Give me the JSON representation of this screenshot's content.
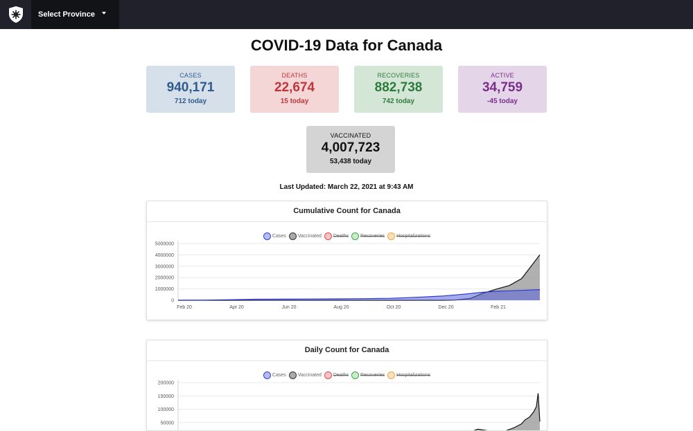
{
  "navbar": {
    "logo_icon": "shield-maple-leaf-icon",
    "dropdown_label": "Select Province"
  },
  "title": "COVID-19 Data for Canada",
  "stats": {
    "cases": {
      "label": "CASES",
      "value": "940,171",
      "today": "712 today"
    },
    "deaths": {
      "label": "DEATHS",
      "value": "22,674",
      "today": "15 today"
    },
    "recoveries": {
      "label": "RECOVERIES",
      "value": "882,738",
      "today": "742 today"
    },
    "active": {
      "label": "ACTIVE",
      "value": "34,759",
      "today": "-45 today"
    },
    "vaccinated": {
      "label": "VACCINATED",
      "value": "4,007,723",
      "today": "53,438 today"
    }
  },
  "last_updated": "Last Updated: March 22, 2021 at 9:43 AM",
  "legend": [
    {
      "label": "Cases",
      "color": "#3040d8",
      "fill": "#b5bcf2",
      "enabled": true
    },
    {
      "label": "Vaccinated",
      "color": "#333333",
      "fill": "#aaaaaa",
      "enabled": true
    },
    {
      "label": "Deaths",
      "color": "#e04a4a",
      "fill": "#f6c4c4",
      "enabled": false
    },
    {
      "label": "Recoveries",
      "color": "#3aa64a",
      "fill": "#c8ecc8",
      "enabled": false
    },
    {
      "label": "Hospitalizations",
      "color": "#f0a640",
      "fill": "#fbe0bd",
      "enabled": false
    }
  ],
  "chart_data": [
    {
      "type": "area",
      "title": "Cumulative Count for Canada",
      "x_ticks": [
        "Feb 20",
        "Apr 20",
        "Jun 20",
        "Aug 20",
        "Oct 20",
        "Dec 20",
        "Feb 21"
      ],
      "y_ticks": [
        "5000000",
        "4000000",
        "3000000",
        "2000000",
        "1000000",
        "0"
      ],
      "ylim": [
        0,
        5000000
      ],
      "x": [
        "2020-02-01",
        "2020-03-01",
        "2020-04-01",
        "2020-05-01",
        "2020-06-01",
        "2020-07-01",
        "2020-08-01",
        "2020-09-01",
        "2020-10-01",
        "2020-11-01",
        "2020-12-01",
        "2020-12-15",
        "2021-01-01",
        "2021-01-15",
        "2021-02-01",
        "2021-02-15",
        "2021-03-01",
        "2021-03-10",
        "2021-03-22"
      ],
      "series": [
        {
          "name": "Cases",
          "values": [
            0,
            8000,
            50000,
            90000,
            98000,
            108000,
            120000,
            140000,
            170000,
            260000,
            380000,
            470000,
            590000,
            700000,
            790000,
            835000,
            870000,
            900000,
            940171
          ]
        },
        {
          "name": "Vaccinated",
          "values": [
            0,
            0,
            0,
            0,
            0,
            0,
            0,
            0,
            0,
            0,
            0,
            20000,
            150000,
            600000,
            1000000,
            1300000,
            1900000,
            2800000,
            4007723
          ]
        }
      ],
      "legend_position": "top"
    },
    {
      "type": "area",
      "title": "Daily Count for Canada",
      "x_ticks": [],
      "y_ticks": [
        "200000",
        "150000",
        "100000",
        "50000"
      ],
      "ylim": [
        0,
        200000
      ],
      "x": [
        "2020-12-15",
        "2021-01-01",
        "2021-01-10",
        "2021-01-20",
        "2021-02-01",
        "2021-02-10",
        "2021-02-20",
        "2021-03-01",
        "2021-03-05",
        "2021-03-10",
        "2021-03-15",
        "2021-03-18",
        "2021-03-20",
        "2021-03-22"
      ],
      "series": [
        {
          "name": "Vaccinated",
          "values": [
            0,
            15000,
            25000,
            20000,
            12000,
            18000,
            30000,
            45000,
            60000,
            70000,
            90000,
            110000,
            160000,
            53438
          ]
        }
      ],
      "legend_position": "top"
    }
  ]
}
